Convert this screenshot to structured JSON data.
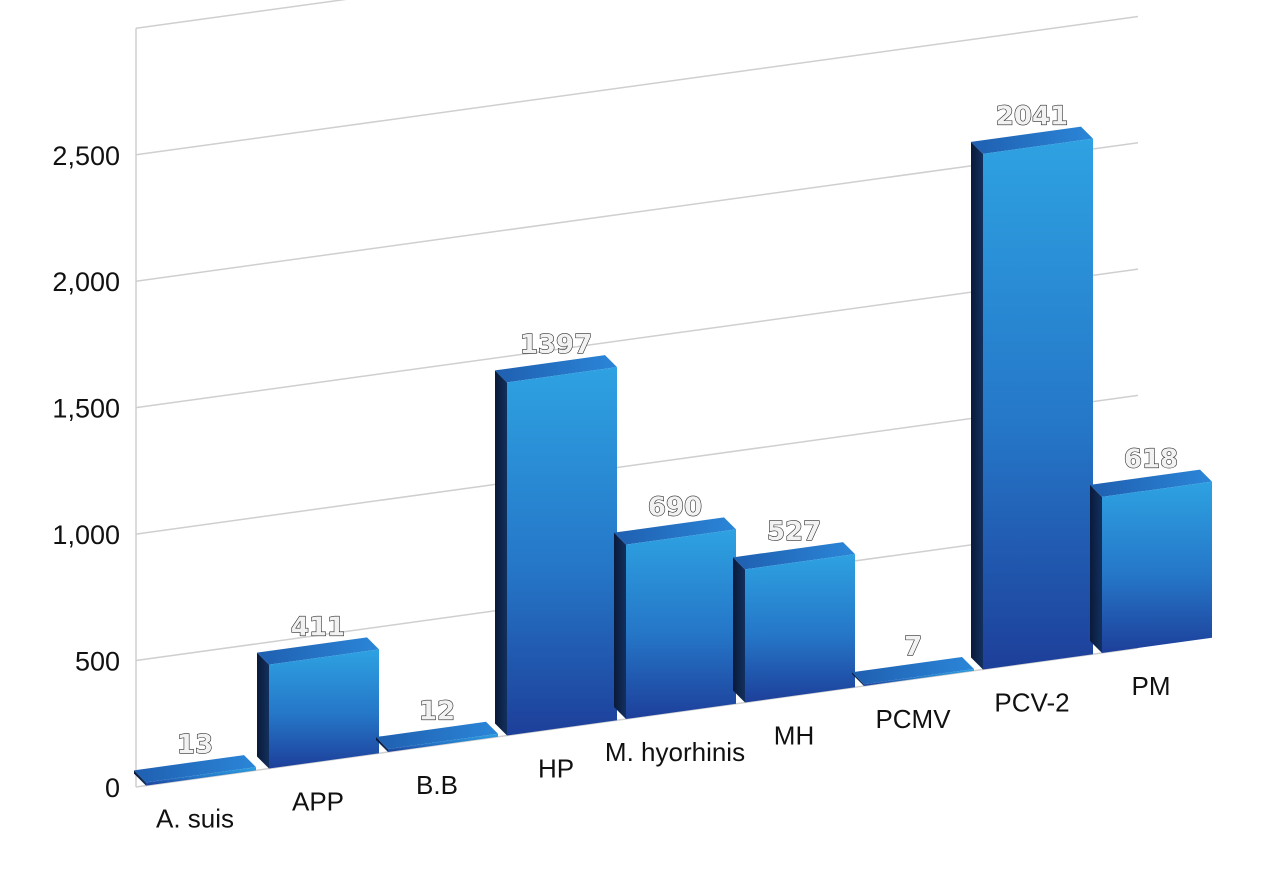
{
  "chart_data": {
    "type": "bar",
    "categories": [
      "A. suis",
      "APP",
      "B.B",
      "HP",
      "M. hyorhinis",
      "MH",
      "PCMV",
      "PCV-2",
      "PM"
    ],
    "values": [
      13,
      411,
      12,
      1397,
      690,
      527,
      7,
      2041,
      618
    ],
    "data_labels": [
      "13",
      "411",
      "12",
      "1397",
      "690",
      "527",
      "7",
      "2041",
      "618"
    ],
    "y_ticks": [
      0,
      500,
      1000,
      1500,
      2000,
      2500
    ],
    "y_tick_labels": [
      "0",
      "500",
      "1,000",
      "1,500",
      "2,000",
      "2,500"
    ],
    "ylim": [
      0,
      2500
    ],
    "title": "",
    "xlabel": "",
    "ylabel": "",
    "grid": true,
    "legend": "none",
    "style": "3d-perspective",
    "colors": {
      "bar_front_top": "#2ea2e2",
      "bar_front_bottom": "#1d3f9a",
      "bar_side": "#0a1a3a",
      "bar_top": "#2b86d8",
      "grid": "#cfcfcf"
    }
  }
}
